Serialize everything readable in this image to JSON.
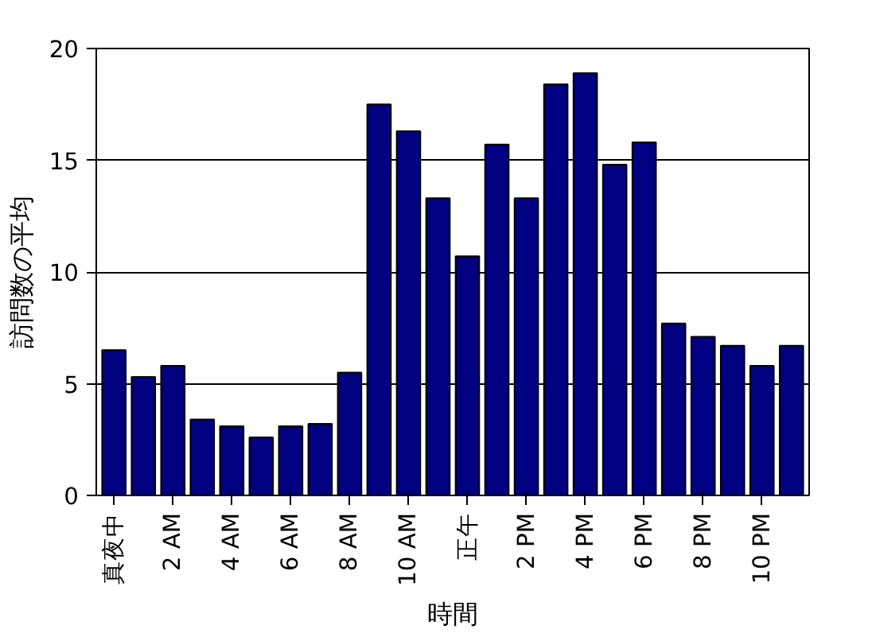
{
  "chart_data": {
    "type": "bar",
    "xlabel": "時間",
    "ylabel": "訪問数の平均",
    "categories": [
      "真夜中",
      null,
      "2 AM",
      null,
      "4 AM",
      null,
      "6 AM",
      null,
      "8 AM",
      null,
      "10 AM",
      null,
      "正午",
      null,
      "2 PM",
      null,
      "4 PM",
      null,
      "6 PM",
      null,
      "8 PM",
      null,
      "10 PM",
      null
    ],
    "values": [
      6.5,
      5.3,
      5.8,
      3.4,
      3.1,
      2.6,
      3.1,
      3.2,
      5.5,
      17.5,
      16.3,
      13.3,
      10.7,
      15.7,
      13.3,
      18.4,
      18.9,
      14.8,
      15.8,
      7.7,
      7.1,
      6.7,
      5.8,
      6.7
    ],
    "color": "#000080",
    "ylim": [
      0,
      20
    ],
    "yticks": [
      0,
      5,
      10,
      15,
      20
    ],
    "grid": "y"
  }
}
